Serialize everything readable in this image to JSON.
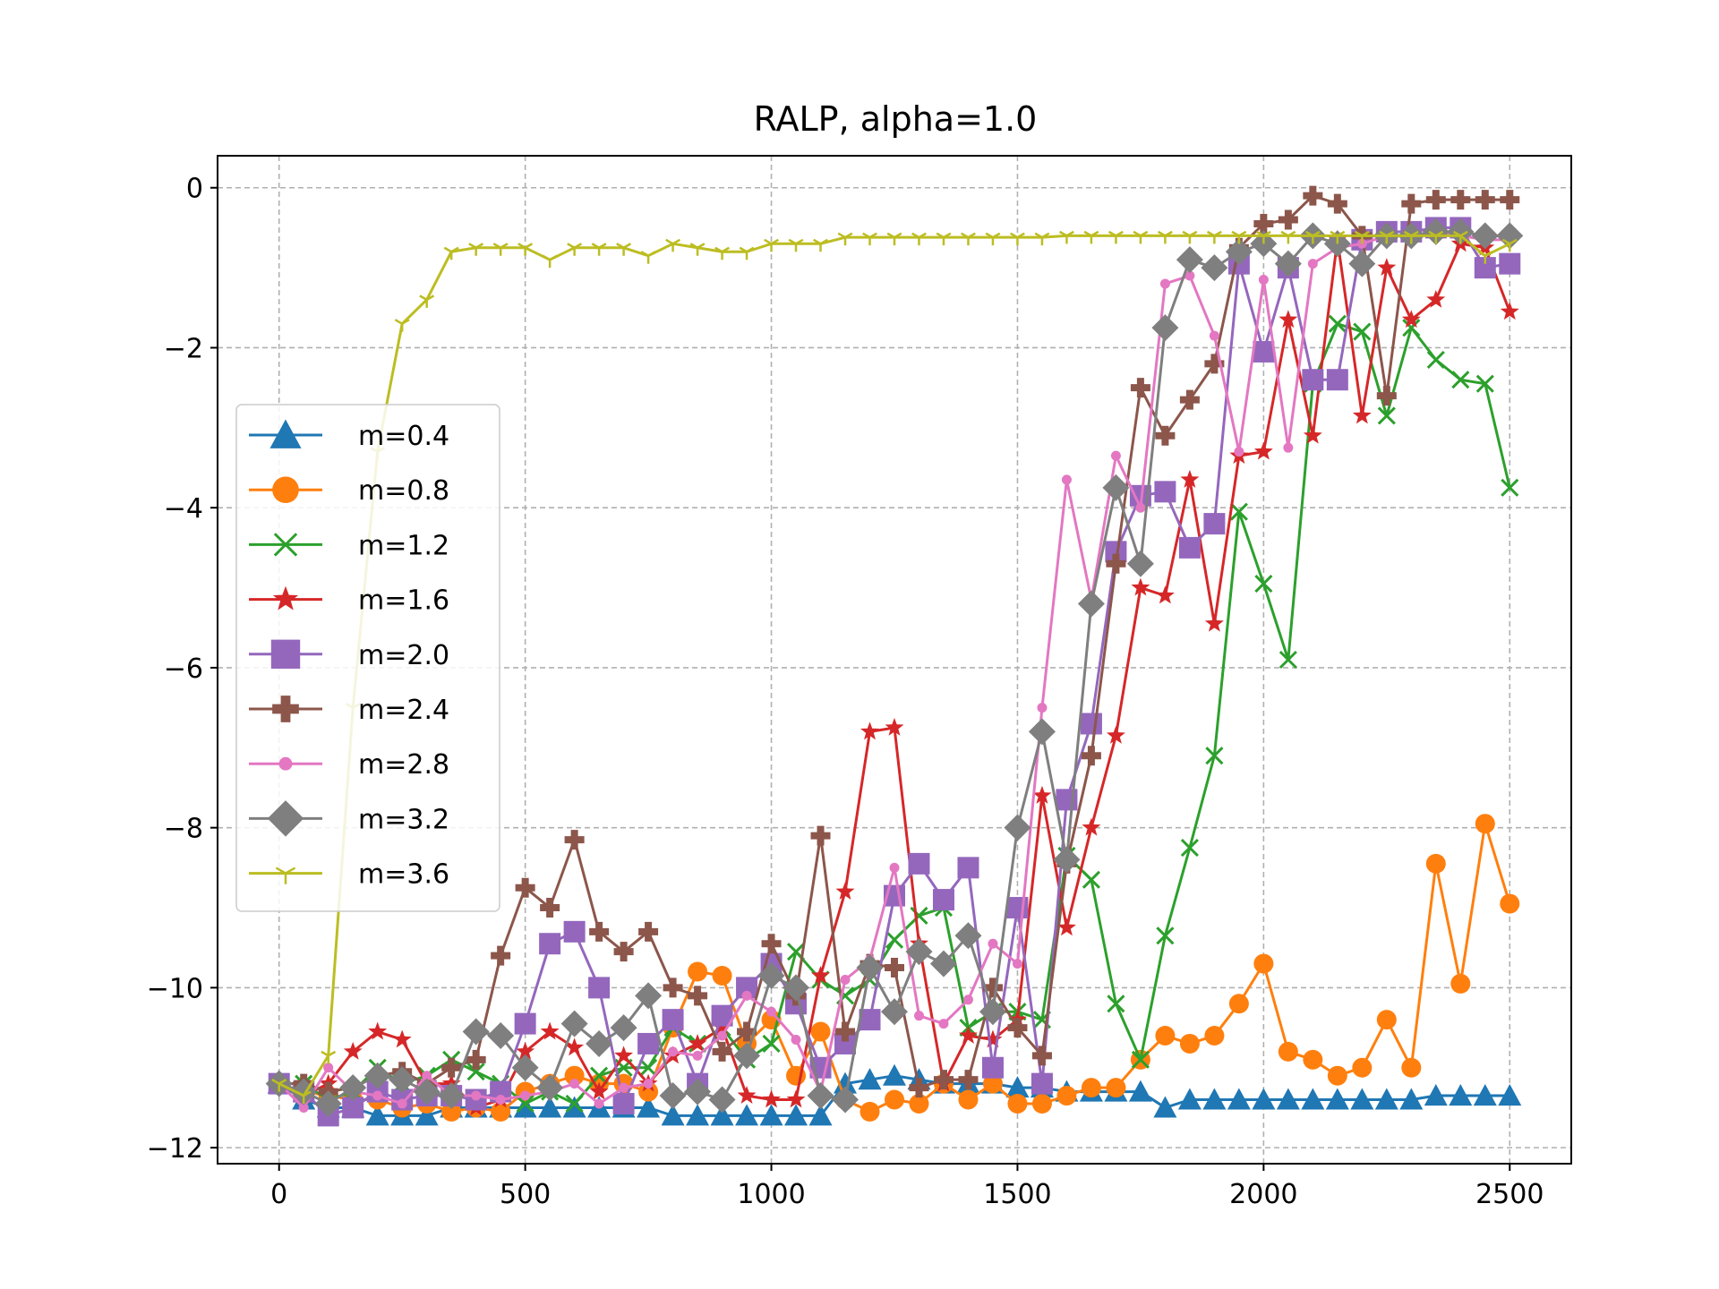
{
  "chart_data": {
    "type": "line",
    "title": "RALP, alpha=1.0",
    "xlabel": "",
    "ylabel": "",
    "xlim": [
      -125,
      2625
    ],
    "ylim": [
      -12.2,
      0.4
    ],
    "xticks": [
      0,
      500,
      1000,
      1500,
      2000,
      2500
    ],
    "yticks": [
      0,
      -2,
      -4,
      -6,
      -8,
      -10,
      -12
    ],
    "xtick_labels": [
      "0",
      "500",
      "1000",
      "1500",
      "2000",
      "2500"
    ],
    "ytick_labels": [
      "0",
      "−2",
      "−4",
      "−6",
      "−8",
      "−10",
      "−12"
    ],
    "grid": true,
    "legend_position": "center-left",
    "x": [
      0,
      50,
      100,
      150,
      200,
      250,
      300,
      350,
      400,
      450,
      500,
      550,
      600,
      650,
      700,
      750,
      800,
      850,
      900,
      950,
      1000,
      1050,
      1100,
      1150,
      1200,
      1250,
      1300,
      1350,
      1400,
      1450,
      1500,
      1550,
      1600,
      1650,
      1700,
      1750,
      1800,
      1850,
      1900,
      1950,
      2000,
      2050,
      2100,
      2150,
      2200,
      2250,
      2300,
      2350,
      2400,
      2450,
      2500
    ],
    "series": [
      {
        "name": "m=0.4",
        "color": "#1f77b4",
        "marker": "triangle",
        "values": [
          -11.2,
          -11.4,
          -11.5,
          -11.5,
          -11.6,
          -11.6,
          -11.6,
          -11.5,
          -11.5,
          -11.5,
          -11.5,
          -11.5,
          -11.5,
          -11.5,
          -11.5,
          -11.5,
          -11.6,
          -11.6,
          -11.6,
          -11.6,
          -11.6,
          -11.6,
          -11.6,
          -11.2,
          -11.15,
          -11.1,
          -11.15,
          -11.2,
          -11.2,
          -11.2,
          -11.25,
          -11.25,
          -11.3,
          -11.3,
          -11.3,
          -11.3,
          -11.5,
          -11.4,
          -11.4,
          -11.4,
          -11.4,
          -11.4,
          -11.4,
          -11.4,
          -11.4,
          -11.4,
          -11.4,
          -11.35,
          -11.35,
          -11.35,
          -11.35
        ]
      },
      {
        "name": "m=0.8",
        "color": "#ff7f0e",
        "marker": "circle",
        "values": [
          -11.2,
          -11.3,
          -11.35,
          -11.4,
          -11.4,
          -11.5,
          -11.45,
          -11.55,
          -11.5,
          -11.55,
          -11.3,
          -11.2,
          -11.1,
          -11.2,
          -11.2,
          -11.3,
          -10.5,
          -9.8,
          -9.85,
          -10.7,
          -10.4,
          -11.1,
          -10.55,
          -11.4,
          -11.55,
          -11.4,
          -11.45,
          -11.2,
          -11.4,
          -11.2,
          -11.45,
          -11.45,
          -11.35,
          -11.25,
          -11.25,
          -10.9,
          -10.6,
          -10.7,
          -10.6,
          -10.2,
          -9.7,
          -10.8,
          -10.9,
          -11.1,
          -11.0,
          -10.4,
          -11.0,
          -8.45,
          -9.95,
          -7.95,
          -8.95
        ]
      },
      {
        "name": "m=1.2",
        "color": "#2ca02c",
        "marker": "x",
        "values": [
          -11.2,
          -11.2,
          -11.4,
          -11.3,
          -11.0,
          -11.2,
          -11.1,
          -10.9,
          -11.05,
          -11.2,
          -11.45,
          -11.3,
          -11.45,
          -11.1,
          -11.0,
          -11.0,
          -10.5,
          -10.7,
          -10.5,
          -10.9,
          -10.7,
          -9.55,
          -9.9,
          -10.1,
          -9.9,
          -9.4,
          -9.1,
          -9.0,
          -10.5,
          -10.3,
          -10.3,
          -10.4,
          -8.35,
          -8.65,
          -10.2,
          -10.9,
          -9.35,
          -8.25,
          -7.1,
          -4.05,
          -4.95,
          -5.9,
          -2.45,
          -1.7,
          -1.8,
          -2.85,
          -1.75,
          -2.15,
          -2.4,
          -2.45,
          -3.75
        ]
      },
      {
        "name": "m=1.6",
        "color": "#d62728",
        "marker": "star",
        "values": [
          -11.2,
          -11.35,
          -11.2,
          -10.8,
          -10.55,
          -10.65,
          -11.2,
          -11.2,
          -11.5,
          -11.4,
          -10.8,
          -10.55,
          -10.75,
          -11.3,
          -10.85,
          -11.2,
          -10.85,
          -10.7,
          -10.5,
          -11.35,
          -11.4,
          -11.4,
          -9.85,
          -8.8,
          -6.8,
          -6.75,
          -9.45,
          -11.2,
          -10.6,
          -10.65,
          -10.4,
          -7.6,
          -9.25,
          -8.0,
          -6.85,
          -5.0,
          -5.1,
          -3.65,
          -5.45,
          -3.35,
          -3.3,
          -1.65,
          -3.1,
          -0.65,
          -2.85,
          -1.0,
          -1.65,
          -1.4,
          -0.7,
          -0.75,
          -1.55
        ]
      },
      {
        "name": "m=2.0",
        "color": "#9467bd",
        "marker": "square",
        "values": [
          -11.2,
          -11.3,
          -11.6,
          -11.5,
          -11.3,
          -11.4,
          -11.35,
          -11.35,
          -11.4,
          -11.3,
          -10.45,
          -9.45,
          -9.3,
          -10.0,
          -11.45,
          -10.7,
          -10.4,
          -11.2,
          -10.35,
          -10.0,
          -9.7,
          -10.2,
          -11.0,
          -10.7,
          -10.4,
          -8.85,
          -8.45,
          -8.9,
          -8.5,
          -11.0,
          -9.0,
          -11.2,
          -7.65,
          -6.7,
          -4.55,
          -3.85,
          -3.8,
          -4.5,
          -4.2,
          -0.95,
          -2.05,
          -1.0,
          -2.4,
          -2.4,
          -0.65,
          -0.55,
          -0.55,
          -0.5,
          -0.5,
          -1.0,
          -0.95
        ]
      },
      {
        "name": "m=2.4",
        "color": "#8c564b",
        "marker": "plus",
        "values": [
          -11.2,
          -11.2,
          -11.3,
          -11.25,
          -11.1,
          -11.05,
          -11.2,
          -11.0,
          -10.9,
          -9.6,
          -8.75,
          -9.0,
          -8.15,
          -9.3,
          -9.55,
          -9.3,
          -10.0,
          -10.1,
          -10.8,
          -10.55,
          -9.45,
          -10.1,
          -8.1,
          -10.55,
          -9.7,
          -9.75,
          -11.25,
          -11.15,
          -11.15,
          -10.0,
          -10.5,
          -10.85,
          -8.45,
          -7.1,
          -4.7,
          -2.5,
          -3.1,
          -2.65,
          -2.2,
          -0.75,
          -0.45,
          -0.4,
          -0.1,
          -0.2,
          -0.6,
          -2.6,
          -0.2,
          -0.15,
          -0.15,
          -0.15,
          -0.15
        ]
      },
      {
        "name": "m=2.8",
        "color": "#e377c2",
        "marker": "dot",
        "values": [
          -11.2,
          -11.5,
          -11.0,
          -11.3,
          -11.35,
          -11.45,
          -11.1,
          -11.35,
          -11.35,
          -11.4,
          -11.35,
          -11.3,
          -11.2,
          -11.45,
          -11.25,
          -11.2,
          -10.8,
          -10.85,
          -10.6,
          -10.1,
          -10.3,
          -10.65,
          -11.3,
          -9.9,
          -9.65,
          -8.5,
          -10.35,
          -10.45,
          -10.15,
          -9.45,
          -9.7,
          -6.5,
          -3.65,
          -5.15,
          -3.35,
          -4.0,
          -1.2,
          -1.1,
          -1.85,
          -3.3,
          -1.15,
          -3.25,
          -0.95,
          -0.75,
          -0.7,
          -0.6,
          -0.6,
          -0.55,
          -0.6,
          -0.65,
          -0.65
        ]
      },
      {
        "name": "m=3.2",
        "color": "#7f7f7f",
        "marker": "diamond",
        "values": [
          -11.2,
          -11.3,
          -11.45,
          -11.25,
          -11.1,
          -11.15,
          -11.3,
          -11.35,
          -10.55,
          -10.6,
          -11.0,
          -11.25,
          -10.45,
          -10.7,
          -10.5,
          -10.1,
          -11.35,
          -11.3,
          -11.4,
          -10.85,
          -9.85,
          -10.0,
          -11.35,
          -11.4,
          -9.75,
          -10.3,
          -9.55,
          -9.7,
          -9.35,
          -10.3,
          -8.0,
          -6.8,
          -8.4,
          -5.2,
          -3.75,
          -4.7,
          -1.75,
          -0.9,
          -1.0,
          -0.8,
          -0.7,
          -0.95,
          -0.6,
          -0.7,
          -0.95,
          -0.6,
          -0.6,
          -0.55,
          -0.55,
          -0.6,
          -0.6
        ]
      },
      {
        "name": "m=3.6",
        "color": "#bcbd22",
        "marker": "tri-down",
        "values": [
          -11.2,
          -11.35,
          -10.85,
          -6.5,
          -3.3,
          -1.7,
          -1.4,
          -0.8,
          -0.75,
          -0.75,
          -0.75,
          -0.9,
          -0.75,
          -0.75,
          -0.75,
          -0.85,
          -0.7,
          -0.75,
          -0.8,
          -0.8,
          -0.7,
          -0.7,
          -0.7,
          -0.62,
          -0.62,
          -0.62,
          -0.62,
          -0.62,
          -0.62,
          -0.62,
          -0.62,
          -0.62,
          -0.6,
          -0.6,
          -0.6,
          -0.6,
          -0.6,
          -0.6,
          -0.6,
          -0.6,
          -0.6,
          -0.6,
          -0.6,
          -0.6,
          -0.6,
          -0.6,
          -0.6,
          -0.6,
          -0.6,
          -0.85,
          -0.7
        ]
      }
    ]
  }
}
